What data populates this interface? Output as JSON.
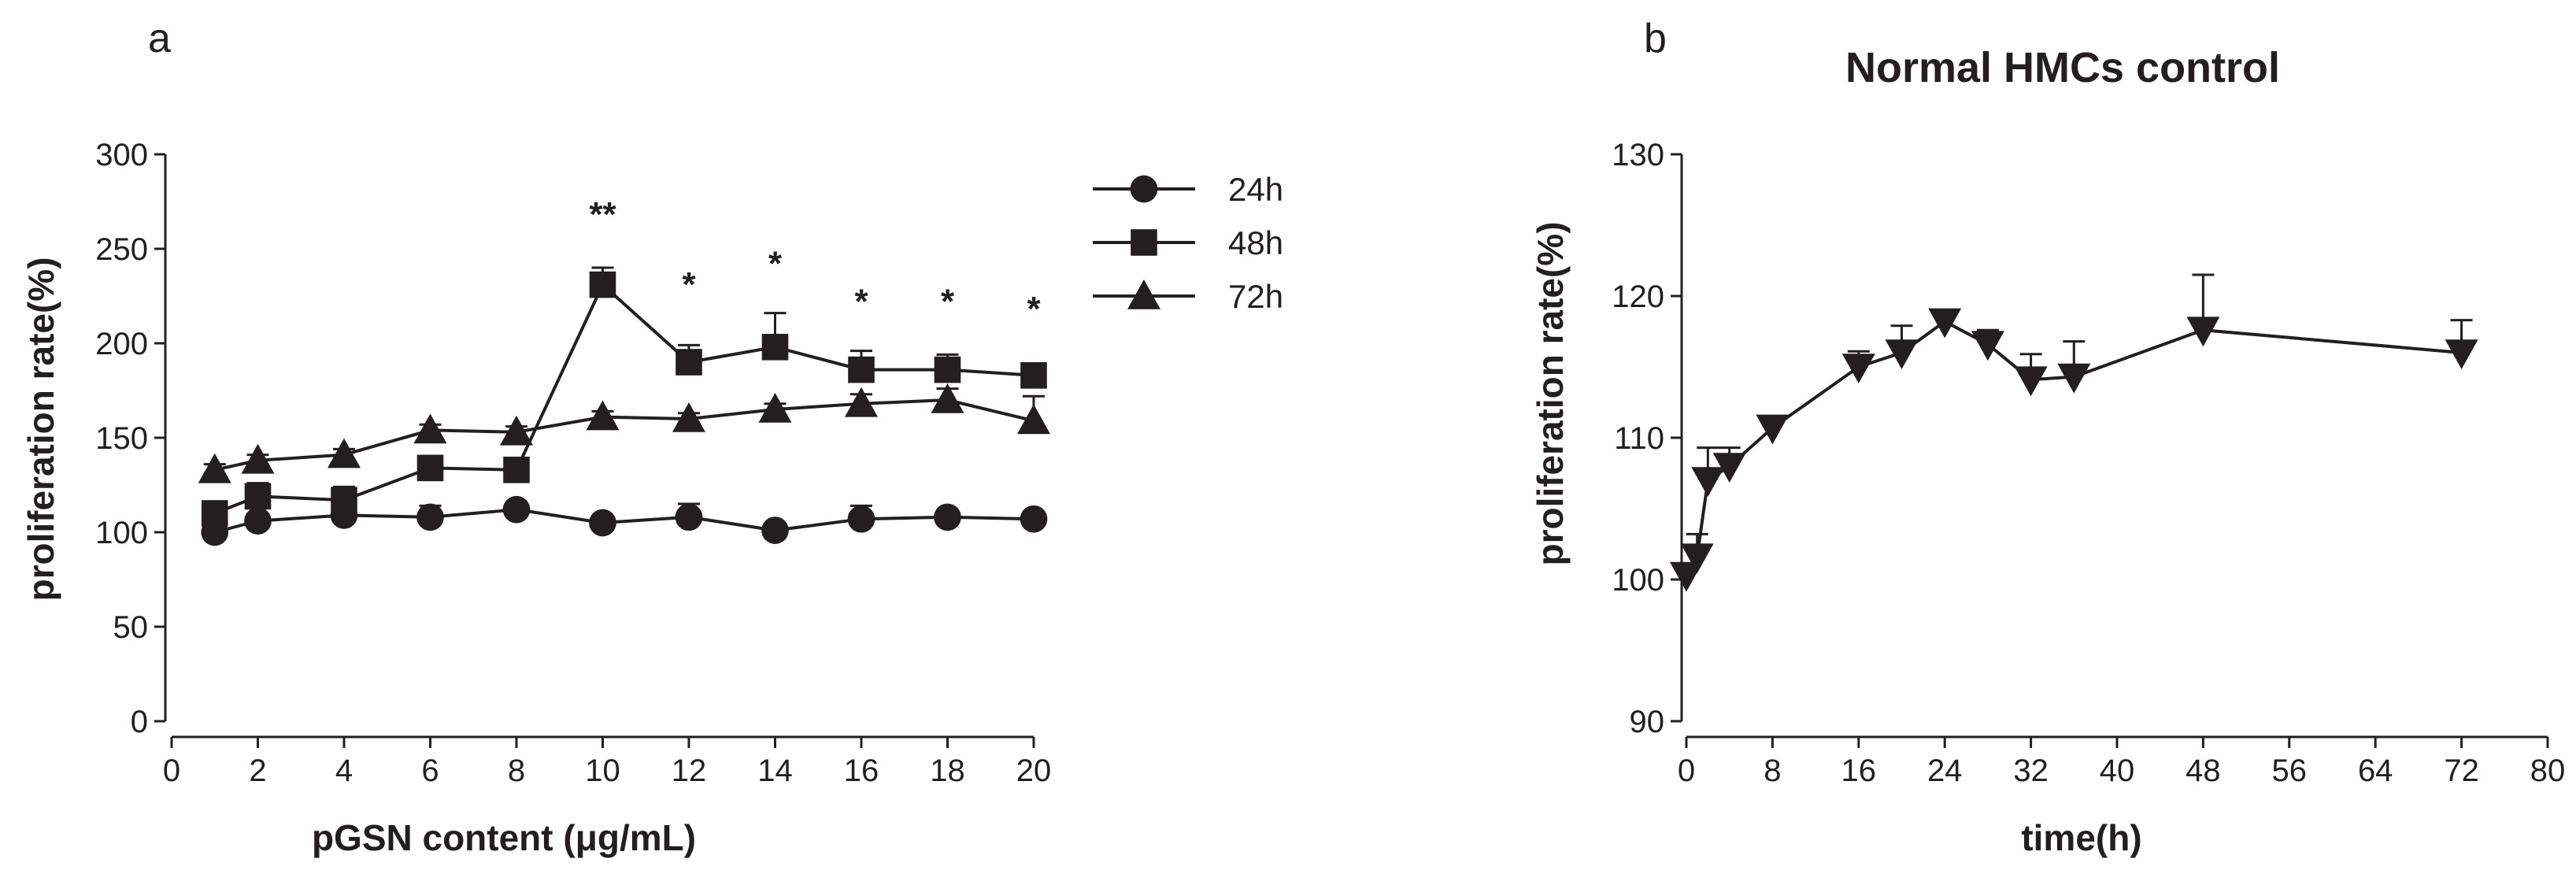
{
  "chart_data": [
    {
      "panel": "a",
      "type": "line",
      "title": "",
      "xlabel": "pGSN content (μg/mL)",
      "ylabel": "proliferation rate(%)",
      "xlim": [
        0,
        20
      ],
      "ylim": [
        0,
        300
      ],
      "xticks": [
        0,
        2,
        4,
        6,
        8,
        10,
        12,
        14,
        16,
        18,
        20
      ],
      "yticks": [
        0,
        50,
        100,
        150,
        200,
        250,
        300
      ],
      "grid": false,
      "legend_position": "right",
      "x": [
        1,
        2,
        4,
        6,
        8,
        10,
        12,
        14,
        16,
        18,
        20
      ],
      "series": [
        {
          "name": "24h",
          "marker": "circle",
          "values": [
            100,
            106,
            109,
            108,
            112,
            105,
            108,
            101,
            107,
            108,
            107
          ],
          "error": [
            3,
            3,
            3,
            6,
            2,
            2,
            7,
            3,
            7,
            2,
            2
          ]
        },
        {
          "name": "48h",
          "marker": "square",
          "values": [
            110,
            119,
            117,
            134,
            133,
            231,
            190,
            198,
            186,
            186,
            183
          ],
          "error": [
            4,
            7,
            7,
            3,
            3,
            9,
            9,
            18,
            10,
            8,
            6
          ]
        },
        {
          "name": "72h",
          "marker": "triangle",
          "values": [
            133,
            138,
            141,
            154,
            153,
            161,
            160,
            165,
            168,
            170,
            159
          ],
          "error": [
            3,
            3,
            3,
            3,
            3,
            3,
            3,
            3,
            5,
            6,
            13
          ]
        }
      ],
      "annotations": [
        {
          "x": 10,
          "y": 262,
          "text": "**"
        },
        {
          "x": 12,
          "y": 225,
          "text": "*"
        },
        {
          "x": 14,
          "y": 236,
          "text": "*"
        },
        {
          "x": 16,
          "y": 216,
          "text": "*"
        },
        {
          "x": 18,
          "y": 216,
          "text": "*"
        },
        {
          "x": 20,
          "y": 212,
          "text": "*"
        }
      ]
    },
    {
      "panel": "b",
      "type": "line",
      "title": "Normal HMCs control",
      "xlabel": "time(h)",
      "ylabel": "proliferation rate(%)",
      "xlim": [
        0,
        80
      ],
      "ylim": [
        90,
        130
      ],
      "xticks": [
        0,
        8,
        16,
        24,
        32,
        40,
        48,
        56,
        64,
        72,
        80
      ],
      "yticks": [
        90,
        100,
        110,
        120,
        130
      ],
      "grid": false,
      "series": [
        {
          "name": "",
          "marker": "triangle-down",
          "x": [
            0,
            1,
            2,
            4,
            8,
            16,
            20,
            24,
            28,
            32,
            36,
            48,
            72
          ],
          "values": [
            100.3,
            101.6,
            107.0,
            108.0,
            110.7,
            115.0,
            116.0,
            118.2,
            116.6,
            114.1,
            114.3,
            117.6,
            116.0
          ],
          "error": [
            0.6,
            1.6,
            2.3,
            1.3,
            0.6,
            1.1,
            1.9,
            0.5,
            1.0,
            1.8,
            2.5,
            3.9,
            2.3
          ]
        }
      ]
    }
  ]
}
